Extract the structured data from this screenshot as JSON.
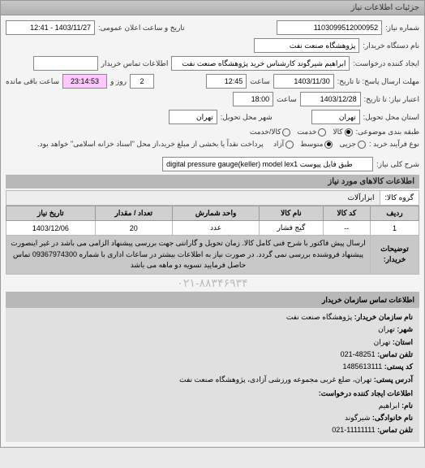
{
  "titlebar": "جزئیات اطلاعات نیاز",
  "fields": {
    "req_no_lbl": "شماره نیاز:",
    "req_no": "1103099512000952",
    "announce_lbl": "تاریخ و ساعت اعلان عمومی:",
    "announce": "1403/11/27 - 12:41",
    "buyer_org_lbl": "نام دستگاه خریدار:",
    "buyer_org": "پژوهشگاه صنعت نفت",
    "requester_lbl": "ایجاد کننده درخواست:",
    "requester": "ابراهیم شیرگوند کارشناس خرید پژوهشگاه صنعت نفت",
    "contact_lbl": "اطلاعات تماس خریدار",
    "contact": "",
    "deadline_lbl": "مهلت ارسال پاسخ: تا تاریخ:",
    "deadline_date": "1403/11/30",
    "deadline_time_lbl": "ساعت",
    "deadline_time": "12:45",
    "remain_days": "2",
    "remain_days_lbl": "روز و",
    "remain_time": "23:14:53",
    "remain_lbl": "ساعت باقی مانده",
    "valid_lbl": "اعتبار نیاز: تا تاریخ:",
    "valid_date": "1403/12/28",
    "valid_time_lbl": "ساعت",
    "valid_time": "18:00",
    "delivery_state_lbl": "استان محل تحویل:",
    "delivery_state": "تهران",
    "delivery_city_lbl": "شهر محل تحویل:",
    "delivery_city": "تهران",
    "budget_class_lbl": "طبقه بندی موضوعی:",
    "budget_class_opts": [
      "کالا",
      "خدمت",
      "کالا/خدمت"
    ],
    "budget_class_sel": 0,
    "process_lbl": "نوع فرآیند خرید :",
    "process_opts": [
      "جزیی",
      "متوسط",
      "آزاد"
    ],
    "process_sel": 1,
    "process_note": "پرداخت نقداً یا بخشی از مبلغ خرید،از محل \"اسناد خزانه اسلامی\" خواهد بود.",
    "keyword_lbl": "شرح کلی نیاز:",
    "keyword": "digital pressure gauge(keller) model lex1 طبق فایل پیوست"
  },
  "items_head": "اطلاعات کالاهای مورد نیاز",
  "category": {
    "lbl": "گروه کالا:",
    "val": "ابزارآلات"
  },
  "table": {
    "cols": [
      "ردیف",
      "کد کالا",
      "نام کالا",
      "واحد شمارش",
      "تعداد / مقدار",
      "تاریخ نیاز"
    ],
    "rows": [
      [
        "1",
        "--",
        "گیج فشار",
        "عدد",
        "20",
        "1403/12/06"
      ]
    ],
    "desc_lbl": "توضیحات خریدار:",
    "desc": "ارسال پیش فاکتور با شرح فنی کامل کالا. زمان تحویل و گارانتی جهت بررسی پیشنهاد الزامی می باشد در غیر اینصورت پیشنهاد فروشنده بررسی نمی گردد. در صورت نیاز به اطلاعات بیشتر در ساعات اداری با شماره 09367974300 تماس حاصل فرمایید تسویه دو ماهه می باشد"
  },
  "watermark": "۰۲۱-۸۸۳۴۶۹۳۴",
  "contact_section": {
    "head": "اطلاعات تماس سازمان خریدار",
    "lines": [
      [
        "نام سازمان خریدار:",
        "پژوهشگاه صنعت نفت"
      ],
      [
        "شهر:",
        "تهران"
      ],
      [
        "استان:",
        "تهران"
      ],
      [
        "تلفن تماس:",
        "48251-021"
      ],
      [
        "کد پستی:",
        "1485613111"
      ],
      [
        "آدرس پستی:",
        "تهران، ضلع غربی مجموعه ورزشی آزادی، پژوهشگاه صنعت نفت"
      ]
    ],
    "creator_head": "اطلاعات ایجاد کننده درخواست:",
    "creator_lines": [
      [
        "نام:",
        "ابراهیم"
      ],
      [
        "نام خانوادگی:",
        "شیرگوند"
      ],
      [
        "تلفن تماس:",
        "11111111-021"
      ]
    ]
  }
}
